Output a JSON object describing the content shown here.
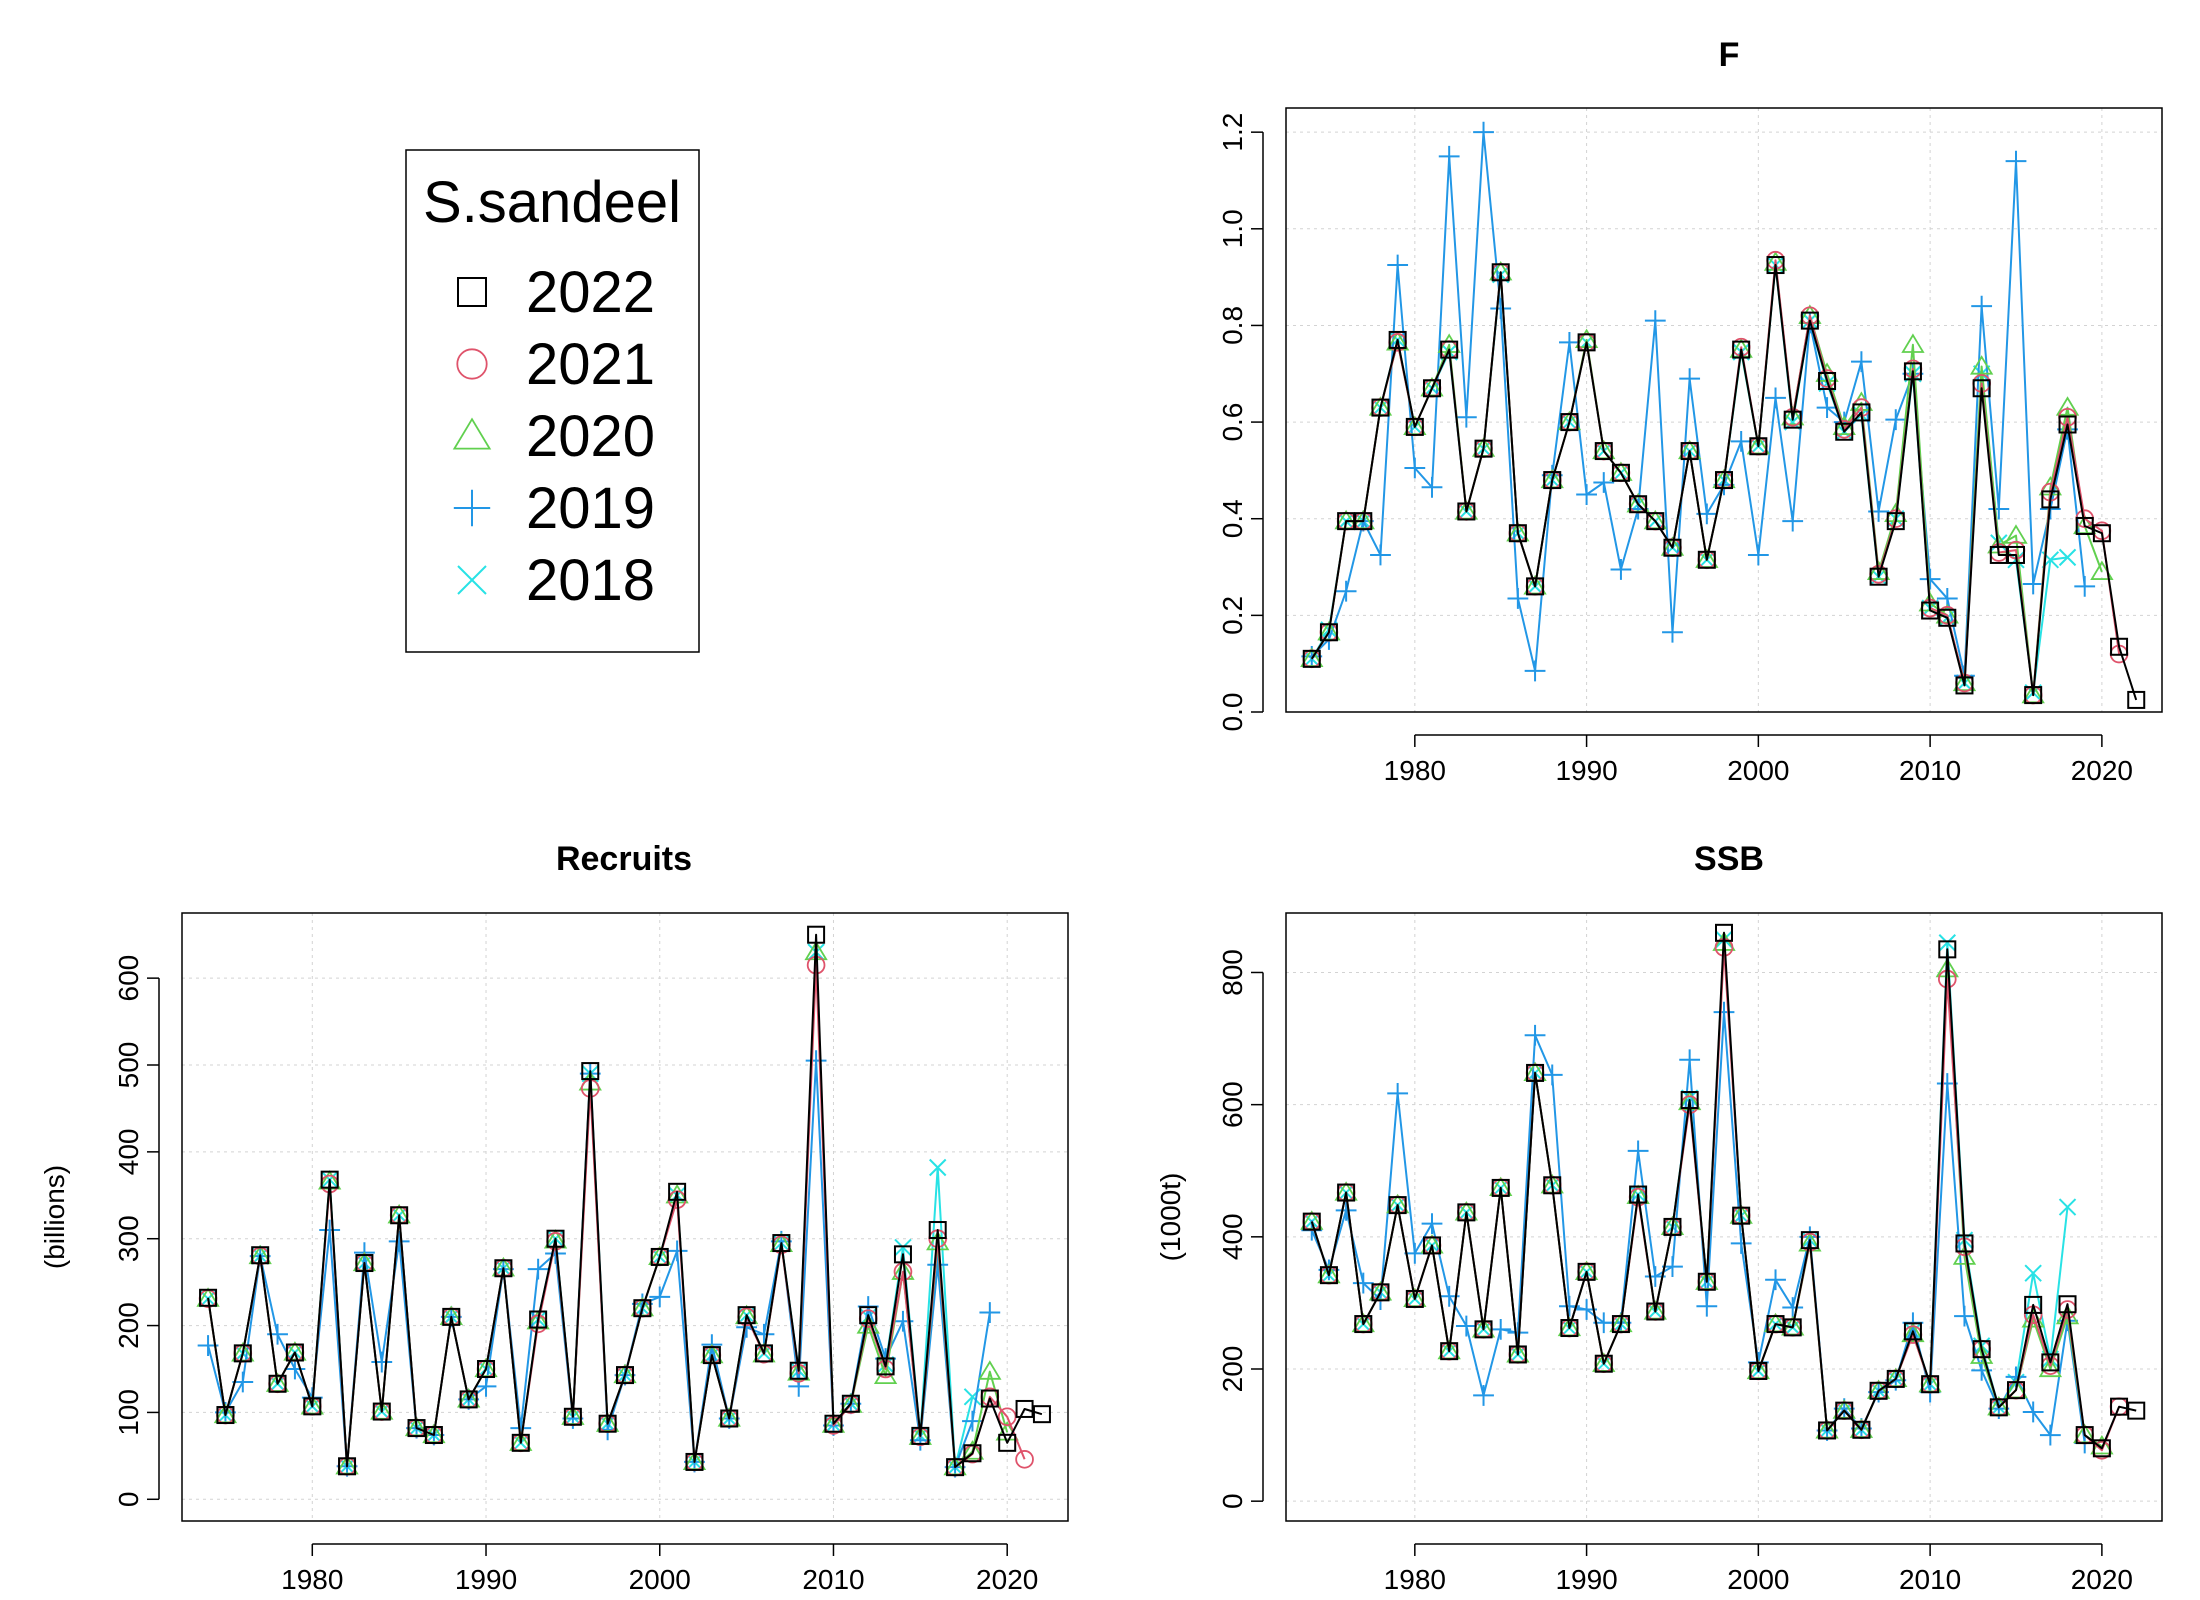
{
  "legend": {
    "title": "S.sandeel",
    "entries": [
      {
        "label": "2022",
        "color": "#000000",
        "symbol": "square"
      },
      {
        "label": "2021",
        "color": "#DF536B",
        "symbol": "circle"
      },
      {
        "label": "2020",
        "color": "#61D04F",
        "symbol": "triangle"
      },
      {
        "label": "2019",
        "color": "#2297E6",
        "symbol": "plus"
      },
      {
        "label": "2018",
        "color": "#28E2E5",
        "symbol": "cross"
      }
    ]
  },
  "chart_data": [
    {
      "type": "line",
      "title": "F",
      "ylabel": "",
      "xlim": [
        1972.5,
        2023.5
      ],
      "ylim": [
        0,
        1.25
      ],
      "xticks": [
        1980,
        1990,
        2000,
        2010,
        2020
      ],
      "yticks": [
        0.0,
        0.2,
        0.4,
        0.6,
        0.8,
        1.0,
        1.2
      ],
      "ytick_labels": [
        "0.0",
        "0.2",
        "0.4",
        "0.6",
        "0.8",
        "1.0",
        "1.2"
      ],
      "grid": true,
      "x_start": 1974,
      "series": [
        {
          "name": "2022",
          "values": [
            0.11,
            0.165,
            0.395,
            0.395,
            0.63,
            0.77,
            0.59,
            0.67,
            0.75,
            0.415,
            0.545,
            0.91,
            0.37,
            0.26,
            0.48,
            0.6,
            0.765,
            0.54,
            0.495,
            0.43,
            0.395,
            0.34,
            0.54,
            0.315,
            0.48,
            0.75,
            0.55,
            0.925,
            0.605,
            0.81,
            0.685,
            0.58,
            0.62,
            0.28,
            0.395,
            0.705,
            0.21,
            0.195,
            0.055,
            0.67,
            0.325,
            0.325,
            0.035,
            0.44,
            0.595,
            0.385,
            0.37,
            0.135,
            0.025
          ]
        },
        {
          "name": "2021",
          "values": [
            0.11,
            0.165,
            0.395,
            0.395,
            0.63,
            0.765,
            0.59,
            0.67,
            0.75,
            0.415,
            0.545,
            0.91,
            0.37,
            0.26,
            0.48,
            0.6,
            0.765,
            0.54,
            0.495,
            0.43,
            0.395,
            0.34,
            0.54,
            0.315,
            0.48,
            0.755,
            0.55,
            0.935,
            0.61,
            0.82,
            0.69,
            0.585,
            0.63,
            0.285,
            0.4,
            0.71,
            0.215,
            0.2,
            0.06,
            0.68,
            0.33,
            0.335,
            0.035,
            0.455,
            0.61,
            0.4,
            0.375,
            0.12
          ]
        },
        {
          "name": "2020",
          "values": [
            0.11,
            0.165,
            0.395,
            0.395,
            0.63,
            0.765,
            0.59,
            0.67,
            0.76,
            0.415,
            0.545,
            0.91,
            0.37,
            0.26,
            0.48,
            0.6,
            0.77,
            0.54,
            0.495,
            0.43,
            0.395,
            0.34,
            0.54,
            0.315,
            0.48,
            0.75,
            0.55,
            0.93,
            0.61,
            0.82,
            0.7,
            0.59,
            0.64,
            0.29,
            0.41,
            0.76,
            0.225,
            0.2,
            0.06,
            0.715,
            0.345,
            0.365,
            0.035,
            0.465,
            0.63,
            0.385,
            0.29
          ]
        },
        {
          "name": "2019",
          "values": [
            0.115,
            0.15,
            0.25,
            0.395,
            0.325,
            0.925,
            0.505,
            0.465,
            1.15,
            0.61,
            1.2,
            0.835,
            0.235,
            0.085,
            0.49,
            0.765,
            0.45,
            0.475,
            0.295,
            0.42,
            0.81,
            0.165,
            0.69,
            0.41,
            0.47,
            0.56,
            0.325,
            0.65,
            0.395,
            0.805,
            0.63,
            0.6,
            0.725,
            0.415,
            0.605,
            0.7,
            0.275,
            0.235,
            0.075,
            0.84,
            0.42,
            1.14,
            0.265,
            0.42,
            0.585,
            0.26
          ]
        },
        {
          "name": "2018",
          "values": [
            0.11,
            0.17,
            0.395,
            0.395,
            0.63,
            0.77,
            0.59,
            0.67,
            0.745,
            0.415,
            0.545,
            0.905,
            0.37,
            0.26,
            0.48,
            0.6,
            0.765,
            0.54,
            0.495,
            0.43,
            0.395,
            0.34,
            0.54,
            0.315,
            0.48,
            0.745,
            0.55,
            0.925,
            0.6,
            0.81,
            0.68,
            0.58,
            0.615,
            0.28,
            0.4,
            0.7,
            0.215,
            0.195,
            0.06,
            0.7,
            0.35,
            0.315,
            0.04,
            0.315,
            0.32
          ]
        }
      ]
    },
    {
      "type": "line",
      "title": "Recruits",
      "ylabel": "(billions)",
      "xlim": [
        1972.5,
        2023.5
      ],
      "ylim": [
        -25,
        675
      ],
      "xticks": [
        1980,
        1990,
        2000,
        2010,
        2020
      ],
      "yticks": [
        0,
        100,
        200,
        300,
        400,
        500,
        600
      ],
      "ytick_labels": [
        "0",
        "100",
        "200",
        "300",
        "400",
        "500",
        "600"
      ],
      "grid": true,
      "x_start": 1974,
      "series": [
        {
          "name": "2022",
          "values": [
            232,
            97,
            168,
            281,
            133,
            169,
            107,
            368,
            38,
            272,
            101,
            327,
            82,
            74,
            210,
            115,
            150,
            266,
            65,
            207,
            300,
            95,
            493,
            87,
            143,
            220,
            279,
            354,
            43,
            166,
            93,
            212,
            168,
            295,
            148,
            650,
            87,
            110,
            212,
            153,
            282,
            73,
            310,
            37,
            53,
            116,
            65,
            104,
            98
          ]
        },
        {
          "name": "2021",
          "values": [
            231,
            97,
            168,
            280,
            133,
            169,
            107,
            363,
            38,
            272,
            101,
            327,
            82,
            74,
            210,
            115,
            150,
            266,
            65,
            202,
            297,
            95,
            473,
            87,
            143,
            220,
            279,
            345,
            43,
            166,
            93,
            210,
            167,
            293,
            145,
            615,
            85,
            109,
            208,
            150,
            262,
            72,
            300,
            37,
            52,
            118,
            95,
            46
          ]
        },
        {
          "name": "2020",
          "values": [
            231,
            97,
            168,
            280,
            133,
            169,
            107,
            366,
            38,
            272,
            101,
            327,
            82,
            74,
            210,
            115,
            150,
            266,
            65,
            205,
            298,
            95,
            480,
            87,
            143,
            220,
            279,
            350,
            43,
            166,
            93,
            211,
            167,
            294,
            146,
            630,
            86,
            109,
            200,
            142,
            262,
            72,
            296,
            37,
            55,
            147,
            77
          ]
        },
        {
          "name": "2019",
          "values": [
            177,
            100,
            135,
            280,
            190,
            150,
            117,
            310,
            38,
            284,
            158,
            297,
            82,
            74,
            210,
            115,
            130,
            265,
            82,
            265,
            283,
            93,
            490,
            80,
            143,
            225,
            233,
            286,
            43,
            178,
            93,
            198,
            190,
            297,
            130,
            505,
            85,
            110,
            222,
            162,
            205,
            68,
            270,
            37,
            90,
            215
          ]
        },
        {
          "name": "2018",
          "values": [
            231,
            97,
            168,
            280,
            133,
            169,
            107,
            368,
            38,
            272,
            101,
            327,
            82,
            74,
            210,
            115,
            150,
            266,
            65,
            207,
            300,
            95,
            490,
            87,
            143,
            220,
            279,
            350,
            43,
            166,
            93,
            212,
            168,
            295,
            148,
            630,
            86,
            110,
            210,
            155,
            290,
            73,
            382,
            37,
            118
          ]
        }
      ]
    },
    {
      "type": "line",
      "title": "SSB",
      "ylabel": "(1000t)",
      "xlim": [
        1972.5,
        2023.5
      ],
      "ylim": [
        -30,
        890
      ],
      "xticks": [
        1980,
        1990,
        2000,
        2010,
        2020
      ],
      "yticks": [
        0,
        200,
        400,
        600,
        800
      ],
      "ytick_labels": [
        "0",
        "200",
        "400",
        "600",
        "800"
      ],
      "grid": true,
      "x_start": 1974,
      "series": [
        {
          "name": "2022",
          "values": [
            423,
            342,
            467,
            268,
            316,
            448,
            306,
            387,
            227,
            437,
            260,
            474,
            222,
            648,
            478,
            262,
            347,
            208,
            268,
            464,
            287,
            415,
            607,
            332,
            860,
            432,
            197,
            268,
            263,
            395,
            107,
            137,
            108,
            167,
            185,
            257,
            177,
            835,
            390,
            230,
            142,
            168,
            297,
            210,
            298,
            100,
            80,
            143,
            137
          ]
        },
        {
          "name": "2021",
          "values": [
            423,
            342,
            467,
            268,
            316,
            448,
            306,
            387,
            227,
            437,
            260,
            474,
            222,
            648,
            478,
            262,
            347,
            208,
            268,
            460,
            287,
            415,
            600,
            332,
            838,
            432,
            197,
            268,
            263,
            392,
            107,
            137,
            108,
            167,
            185,
            252,
            177,
            790,
            385,
            230,
            142,
            168,
            282,
            205,
            290,
            100,
            77,
            143
          ]
        },
        {
          "name": "2020",
          "values": [
            423,
            342,
            467,
            268,
            316,
            448,
            306,
            387,
            227,
            437,
            260,
            474,
            222,
            648,
            478,
            262,
            347,
            208,
            268,
            462,
            287,
            415,
            604,
            332,
            845,
            432,
            197,
            268,
            263,
            390,
            107,
            137,
            108,
            167,
            185,
            253,
            177,
            805,
            370,
            220,
            142,
            168,
            275,
            200,
            280,
            100,
            83
          ]
        },
        {
          "name": "2019",
          "values": [
            410,
            350,
            440,
            330,
            305,
            617,
            375,
            420,
            310,
            265,
            160,
            260,
            255,
            705,
            645,
            295,
            290,
            270,
            270,
            530,
            340,
            355,
            668,
            295,
            740,
            390,
            210,
            335,
            293,
            400,
            107,
            140,
            110,
            165,
            183,
            270,
            165,
            632,
            280,
            198,
            140,
            188,
            135,
            100,
            273,
            88
          ]
        },
        {
          "name": "2018",
          "values": [
            423,
            342,
            467,
            268,
            316,
            448,
            306,
            387,
            227,
            437,
            260,
            474,
            222,
            648,
            478,
            262,
            347,
            208,
            268,
            464,
            287,
            415,
            610,
            332,
            850,
            432,
            197,
            268,
            263,
            395,
            107,
            137,
            108,
            167,
            185,
            257,
            177,
            845,
            395,
            235,
            142,
            180,
            345,
            215,
            445
          ]
        }
      ]
    }
  ]
}
